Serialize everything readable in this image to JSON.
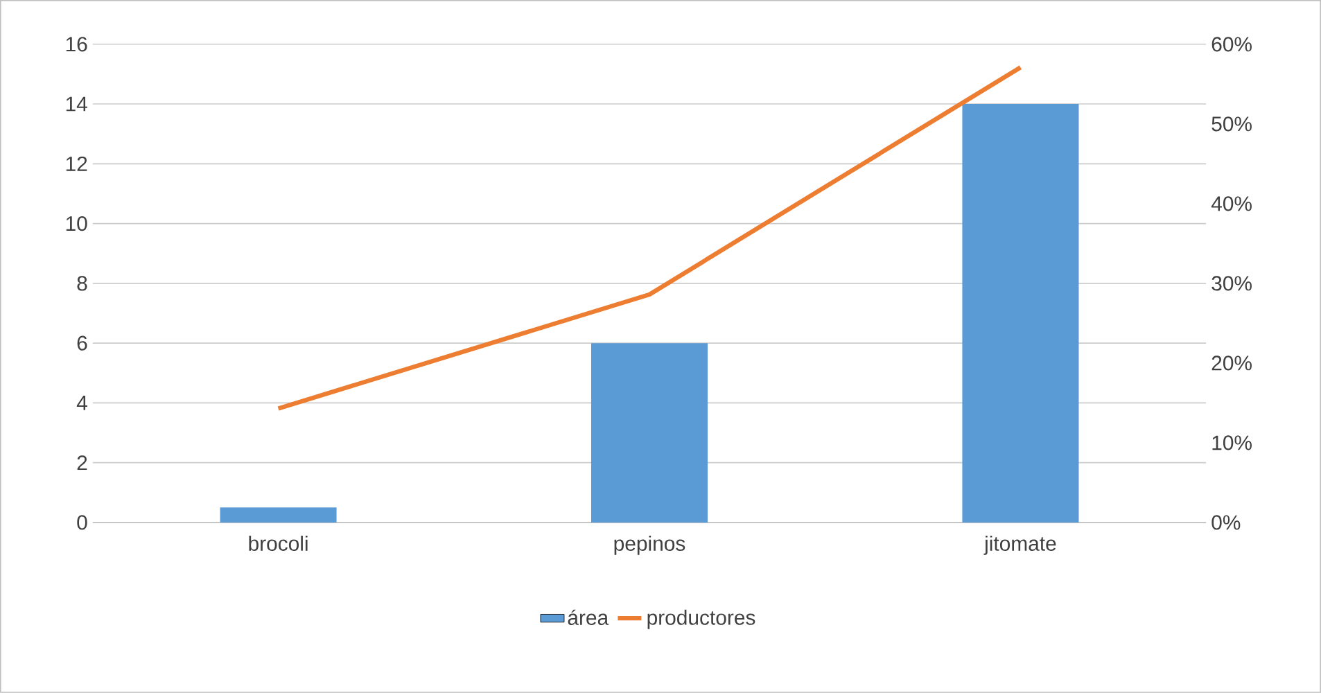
{
  "chart_data": {
    "type": "bar",
    "categories": [
      "brocoli",
      "pepinos",
      "jitomate"
    ],
    "series": [
      {
        "name": "área",
        "color": "#5b9bd5",
        "values": [
          0.5,
          6,
          14
        ]
      },
      {
        "name": "productores",
        "type": "line",
        "axis": "y2",
        "color": "#ed7d31",
        "values": [
          14.3,
          28.6,
          57.1
        ]
      }
    ],
    "ylim": [
      0,
      16
    ],
    "yticks": [
      0,
      2,
      4,
      6,
      8,
      10,
      12,
      14,
      16
    ],
    "y2lim": [
      0,
      60
    ],
    "y2ticks": [
      {
        "value": 0,
        "label": "0%"
      },
      {
        "value": 10,
        "label": "10%"
      },
      {
        "value": 20,
        "label": "20%"
      },
      {
        "value": 30,
        "label": "30%"
      },
      {
        "value": 40,
        "label": "40%"
      },
      {
        "value": 50,
        "label": "50%"
      },
      {
        "value": 60,
        "label": "60%"
      }
    ],
    "grid": "y",
    "legend": "bottom",
    "marker": "none",
    "line_style": "solid"
  }
}
